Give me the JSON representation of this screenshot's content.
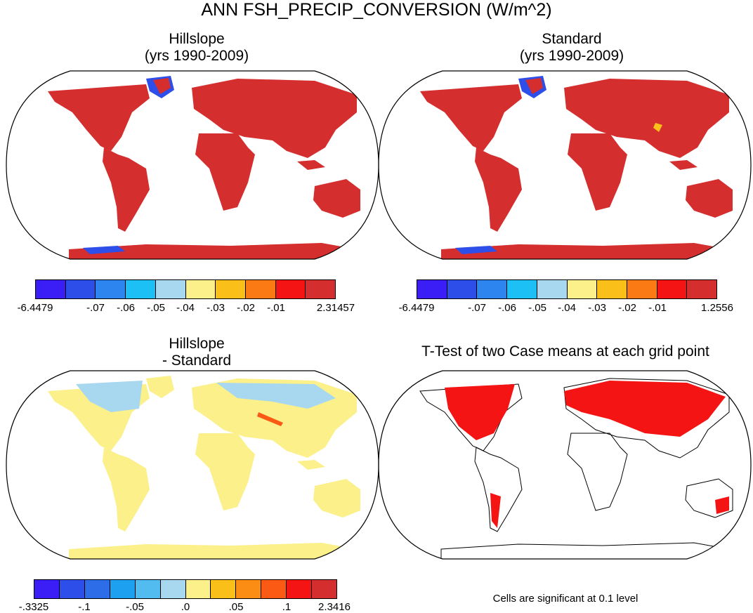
{
  "title": "ANN FSH_PRECIP_CONVERSION (W/m^2)",
  "panels": [
    {
      "id": "hillslope",
      "title_line1": "Hillslope",
      "title_line2": "(yrs 1990-2009)",
      "colorbar": [
        "#3a1ef5",
        "#2d4ee8",
        "#2d86f0",
        "#1cc0f5",
        "#a8d8f0",
        "#fbf08a",
        "#fbbf1a",
        "#fb7a14",
        "#f51414",
        "#d42e2e"
      ],
      "labels": [
        "-6.4479",
        "-.07",
        "-.06",
        "-.05",
        "-.04",
        "-.03",
        "-.02",
        "-.01",
        "2.31457"
      ]
    },
    {
      "id": "standard",
      "title_line1": "Standard",
      "title_line2": "(yrs 1990-2009)",
      "colorbar": [
        "#3a1ef5",
        "#2d4ee8",
        "#2d86f0",
        "#1cc0f5",
        "#a8d8f0",
        "#fbf08a",
        "#fbbf1a",
        "#fb7a14",
        "#f51414",
        "#d42e2e"
      ],
      "labels": [
        "-6.4479",
        "-.07",
        "-.06",
        "-.05",
        "-.04",
        "-.03",
        "-.02",
        "-.01",
        "1.2556"
      ]
    },
    {
      "id": "difference",
      "title_line1": "Hillslope",
      "title_line2": "- Standard",
      "colorbar": [
        "#3a1ef5",
        "#2d4ee8",
        "#2d6ee8",
        "#1ea0f0",
        "#52bcf0",
        "#a8d8f0",
        "#fbf08a",
        "#fbbf1a",
        "#fb8c14",
        "#fb5a14",
        "#f51414",
        "#d42e2e"
      ],
      "labels": [
        "-.3325",
        "-.1",
        "-.05",
        ".0",
        ".05",
        ".1",
        "2.3416"
      ]
    },
    {
      "id": "ttest",
      "title_line1": "T-Test of two Case means at each grid point",
      "note": "Cells are significant at 0.1 level"
    }
  ],
  "chart_data": [
    {
      "type": "heatmap",
      "title": "Hillslope (yrs 1990-2009)",
      "projection": "Robinson",
      "color_levels": [
        "-6.4479",
        "-.07",
        "-.06",
        "-.05",
        "-.04",
        "-.03",
        "-.02",
        "-.01",
        "2.31457"
      ],
      "dominant_value": "-.01 to 2.31457 over most land"
    },
    {
      "type": "heatmap",
      "title": "Standard (yrs 1990-2009)",
      "projection": "Robinson",
      "color_levels": [
        "-6.4479",
        "-.07",
        "-.06",
        "-.05",
        "-.04",
        "-.03",
        "-.02",
        "-.01",
        "1.2556"
      ],
      "dominant_value": "-.01 to 1.2556 over most land"
    },
    {
      "type": "heatmap",
      "title": "Hillslope - Standard",
      "projection": "Robinson",
      "color_levels": [
        "-.3325",
        "-.1",
        "-.05",
        ".0",
        ".05",
        ".1",
        "2.3416"
      ],
      "dominant_value": ".0 to .05 over most land"
    },
    {
      "type": "heatmap",
      "title": "T-Test of two Case means at each grid point",
      "projection": "Robinson",
      "significance_level": 0.1
    }
  ]
}
